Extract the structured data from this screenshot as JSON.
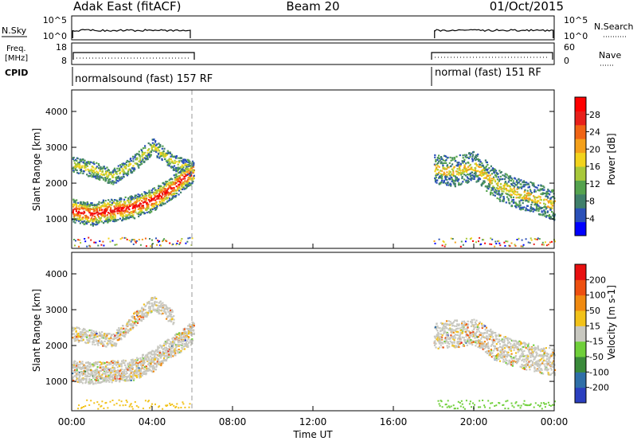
{
  "header": {
    "station": "Adak East (fitACF)",
    "beam": "Beam 20",
    "date": "01/Oct/2015"
  },
  "panels": {
    "nsky": {
      "label": "N.Sky",
      "ticks": [
        "10^5",
        "10^0"
      ],
      "right_label": "N.Search",
      "right_ticks": [
        "10^5",
        "10^0"
      ]
    },
    "freq": {
      "label_line1": "Freq.",
      "label_line2": "[MHz]",
      "ticks": [
        "18",
        "8"
      ],
      "right_label": "Nave",
      "right_ticks": [
        "60",
        "0"
      ]
    },
    "cpid": {
      "label": "CPID",
      "mode1": "normalsound (fast) 157 RF",
      "mode2": "normal (fast) 151 RF"
    },
    "power": {
      "ylabel": "Slant Range [km]",
      "cbar_label": "Power [dB]",
      "cbar_ticks": [
        "28",
        "24",
        "20",
        "16",
        "12",
        "8",
        "4"
      ],
      "colors": [
        "#0000ff",
        "#2a50b8",
        "#3f7f6a",
        "#55a34e",
        "#a8c83a",
        "#f2d31c",
        "#f4a01a",
        "#f06414",
        "#e8201a",
        "#ff0000"
      ]
    },
    "velocity": {
      "ylabel": "Slant Range [km]",
      "cbar_label": "Velocity [m s-1]",
      "cbar_ticks": [
        "200",
        "100",
        "50",
        "15",
        "-15",
        "-50",
        "-100",
        "-200"
      ],
      "colors": [
        "#2b3fbf",
        "#2f6fa8",
        "#3a8a3a",
        "#6fcf3a",
        "#c8c8c0",
        "#f2c21a",
        "#f08a10",
        "#ee5010",
        "#e81010"
      ]
    }
  },
  "xaxis": {
    "label": "Time UT",
    "ticks": [
      "00:00",
      "04:00",
      "08:00",
      "12:00",
      "16:00",
      "20:00",
      "00:00"
    ]
  },
  "chart_data": [
    {
      "type": "heatmap",
      "title": "Adak East (fitACF) Beam 20 01/Oct/2015",
      "xlabel": "Time UT",
      "ylabel": "Slant Range [km]",
      "xlim": [
        0,
        24
      ],
      "ylim": [
        180,
        4600
      ],
      "yticks": [
        1000,
        2000,
        3000,
        4000
      ],
      "colorbar": "Power [dB]",
      "clim": [
        0,
        32
      ],
      "data_windows": [
        [
          0,
          6
        ],
        [
          18,
          24
        ]
      ],
      "features": [
        {
          "name": "near band",
          "t": [
            0,
            0.5,
            1.0,
            1.5,
            2.0,
            3.0,
            4.0,
            5.0,
            5.5,
            6.0
          ],
          "range_km": [
            1250,
            1200,
            1150,
            1230,
            1250,
            1350,
            1550,
            1900,
            2150,
            2350
          ],
          "power_db": 28
        },
        {
          "name": "upper band",
          "t": [
            0,
            1.0,
            2.0,
            3.0,
            4.0,
            5.0,
            6.0
          ],
          "range_km": [
            2550,
            2400,
            2200,
            2550,
            3050,
            2600,
            2400
          ],
          "power_db": 18
        },
        {
          "name": "late band",
          "t": [
            18.0,
            19.0,
            20.0,
            21.0,
            22.0,
            23.0,
            24.0
          ],
          "range_km": [
            2400,
            2350,
            2500,
            2000,
            1750,
            1600,
            1400
          ],
          "power_db": 16
        }
      ]
    },
    {
      "type": "heatmap",
      "xlabel": "Time UT",
      "ylabel": "Slant Range [km]",
      "xlim": [
        0,
        24
      ],
      "ylim": [
        180,
        4600
      ],
      "yticks": [
        1000,
        2000,
        3000,
        4000
      ],
      "colorbar": "Velocity [m s-1]",
      "clim": [
        -250,
        250
      ],
      "data_windows": [
        [
          0,
          6
        ],
        [
          18,
          24
        ]
      ],
      "features": [
        {
          "name": "near band",
          "t": [
            0,
            1.0,
            2.0,
            3.0,
            4.0,
            5.0,
            6.0
          ],
          "range_km": [
            1300,
            1250,
            1300,
            1350,
            1600,
            2000,
            2400
          ],
          "velocity_ms": 0
        },
        {
          "name": "upper band",
          "t": [
            0,
            1.0,
            2.0,
            3.0,
            4.0,
            5.0
          ],
          "range_km": [
            2350,
            2250,
            2150,
            2700,
            3200,
            2800
          ],
          "velocity_ms": 0
        },
        {
          "name": "late band",
          "t": [
            18.0,
            20.0,
            21.0,
            22.0,
            23.0,
            24.0
          ],
          "range_km": [
            2300,
            2400,
            2000,
            1800,
            1650,
            1550
          ],
          "velocity_ms": 0
        }
      ]
    }
  ]
}
